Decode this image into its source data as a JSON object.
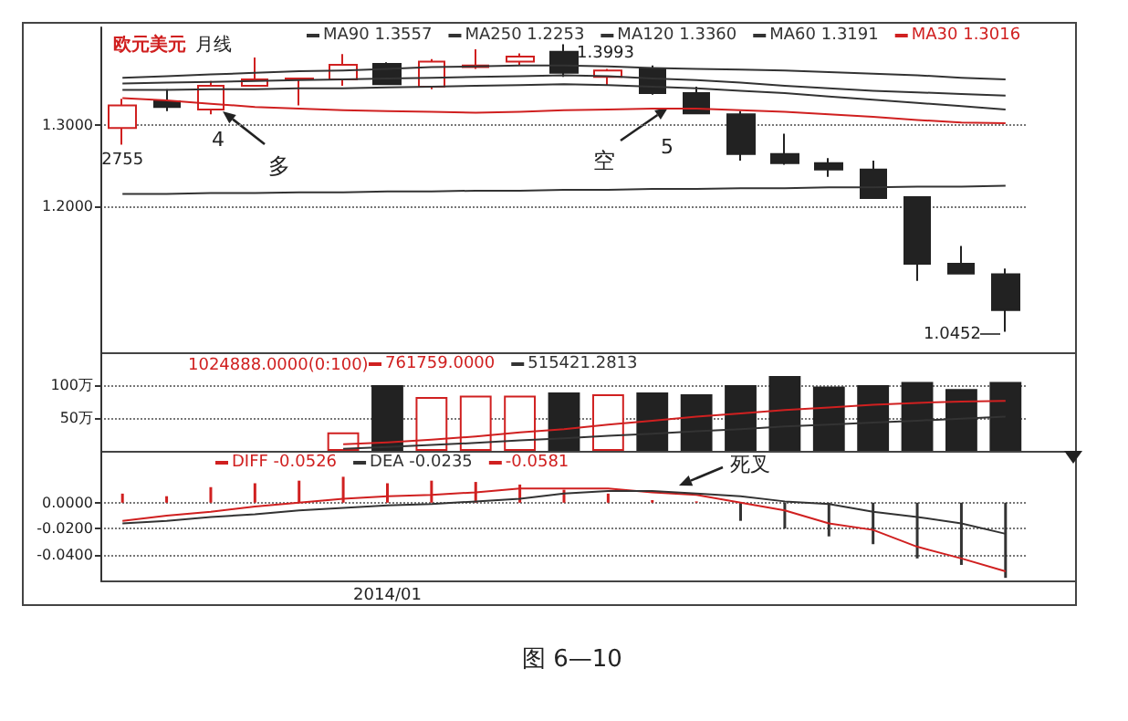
{
  "chart_data": [
    {
      "type": "candlestick",
      "title": "欧元美元",
      "subtitle": "月线",
      "categories": [
        null,
        null,
        null,
        null,
        null,
        null,
        null,
        null,
        null,
        null,
        null,
        null,
        null,
        null,
        null,
        null,
        null,
        null,
        null,
        null,
        null
      ],
      "series": [
        {
          "colors": [
            "#d02020",
            "#222222",
            "#d02020",
            "#d02020",
            "#d02020",
            "#d02020",
            "#222222",
            "#d02020",
            "#d02020",
            "#d02020",
            "#222222",
            "#d02020",
            "#222222",
            "#222222",
            "#222222",
            "#222222",
            "#222222",
            "#222222",
            "#222222",
            "#222222",
            "#222222"
          ],
          "ohlc": [
            [
              1.296,
              1.332,
              1.2755,
              1.324
            ],
            [
              1.329,
              1.344,
              1.317,
              1.322
            ],
            [
              1.319,
              1.354,
              1.313,
              1.348
            ],
            [
              1.348,
              1.383,
              1.347,
              1.356
            ],
            [
              1.356,
              1.357,
              1.324,
              1.357
            ],
            [
              1.356,
              1.387,
              1.348,
              1.374
            ],
            [
              1.375,
              1.377,
              1.349,
              1.35
            ],
            [
              1.347,
              1.381,
              1.344,
              1.378
            ],
            [
              1.371,
              1.393,
              1.369,
              1.373
            ],
            [
              1.378,
              1.388,
              1.374,
              1.384
            ],
            [
              1.39,
              1.3993,
              1.359,
              1.364
            ],
            [
              1.359,
              1.369,
              1.349,
              1.367
            ],
            [
              1.369,
              1.373,
              1.337,
              1.339
            ],
            [
              1.339,
              1.347,
              1.313,
              1.314
            ],
            [
              1.313,
              1.317,
              1.256,
              1.264
            ],
            [
              1.264,
              1.289,
              1.251,
              1.253
            ],
            [
              1.253,
              1.259,
              1.236,
              1.245
            ],
            [
              1.245,
              1.256,
              1.209,
              1.21
            ],
            [
              1.211,
              1.211,
              1.108,
              1.129
            ],
            [
              1.129,
              1.151,
              1.117,
              1.117
            ],
            [
              1.116,
              1.123,
              1.0452,
              1.072
            ]
          ]
        },
        {
          "type": "line",
          "name": "MA90 1.3557",
          "color": "#333333",
          "values": [
            1.358,
            1.36,
            1.362,
            1.364,
            1.366,
            1.367,
            1.369,
            1.371,
            1.372,
            1.373,
            1.373,
            1.372,
            1.37,
            1.369,
            1.368,
            1.367,
            1.365,
            1.363,
            1.361,
            1.358,
            1.356
          ]
        },
        {
          "type": "line",
          "name": "MA250 1.2253",
          "color": "#333333",
          "values": [
            1.215,
            1.215,
            1.216,
            1.216,
            1.217,
            1.217,
            1.218,
            1.218,
            1.219,
            1.219,
            1.22,
            1.22,
            1.221,
            1.221,
            1.222,
            1.222,
            1.223,
            1.223,
            1.224,
            1.224,
            1.225
          ]
        },
        {
          "type": "line",
          "name": "MA120 1.3360",
          "color": "#333333",
          "values": [
            1.351,
            1.352,
            1.353,
            1.354,
            1.355,
            1.356,
            1.357,
            1.358,
            1.359,
            1.36,
            1.361,
            1.36,
            1.357,
            1.355,
            1.352,
            1.348,
            1.345,
            1.342,
            1.34,
            1.338,
            1.336
          ]
        },
        {
          "type": "line",
          "name": "MA60 1.3191",
          "color": "#333333",
          "values": [
            1.343,
            1.343,
            1.344,
            1.344,
            1.345,
            1.345,
            1.346,
            1.347,
            1.348,
            1.349,
            1.35,
            1.349,
            1.347,
            1.345,
            1.342,
            1.339,
            1.335,
            1.331,
            1.327,
            1.323,
            1.319
          ]
        },
        {
          "type": "line",
          "name": "MA30 1.3016",
          "color": "#d02020",
          "values": [
            1.333,
            1.33,
            1.326,
            1.322,
            1.32,
            1.318,
            1.317,
            1.316,
            1.315,
            1.316,
            1.318,
            1.319,
            1.32,
            1.32,
            1.318,
            1.316,
            1.313,
            1.31,
            1.306,
            1.303,
            1.302
          ]
        }
      ],
      "ylim": [
        1.02,
        1.42
      ],
      "yticks": [
        {
          "value": 1.2,
          "label": "1.2000"
        },
        {
          "value": 1.3,
          "label": "1.3000"
        }
      ],
      "grid": "y",
      "legend": "top",
      "tick_labels": "y",
      "marker": "none",
      "line_style": "solid",
      "annotations": [
        "4",
        "多",
        "5",
        "空",
        "1.3993",
        "1.0452",
        {
          "text": "2755",
          "y": 1.2755
        }
      ]
    },
    {
      "type": "bar",
      "categories": [
        null,
        null,
        null,
        null,
        null,
        null,
        null,
        null,
        null,
        null,
        null,
        null,
        null,
        null,
        null,
        null,
        null,
        null,
        null,
        null,
        null
      ],
      "series": [
        {
          "colors": [
            null,
            null,
            null,
            null,
            null,
            "#d02020",
            "#222222",
            "#d02020",
            "#d02020",
            "#d02020",
            "#222222",
            "#d02020",
            "#222222",
            "#222222",
            "#222222",
            "#222222",
            "#222222",
            "#222222",
            "#222222",
            "#222222",
            "#222222"
          ],
          "values": [
            null,
            null,
            null,
            null,
            null,
            28,
            100,
            82,
            84,
            84,
            89,
            86,
            89,
            86,
            100,
            114,
            98,
            100,
            105,
            94,
            105
          ]
        },
        {
          "type": "line",
          "name": "761759.0000",
          "color": "#d02020",
          "values": [
            null,
            null,
            null,
            null,
            null,
            10,
            13,
            17,
            22,
            28,
            33,
            40,
            46,
            52,
            57,
            62,
            66,
            70,
            73,
            75,
            76
          ]
        },
        {
          "type": "line",
          "name": "515421.2813",
          "color": "#333333",
          "values": [
            null,
            null,
            null,
            null,
            null,
            3,
            6,
            9,
            12,
            16,
            19,
            23,
            26,
            30,
            33,
            37,
            40,
            43,
            46,
            49,
            52
          ]
        }
      ],
      "ylim": [
        0,
        150
      ],
      "yticks": [
        {
          "value": 50,
          "label": "50万"
        },
        {
          "value": 100,
          "label": "100万"
        }
      ],
      "grid": "y",
      "legend": "top",
      "tick_labels": "y",
      "marker": "none",
      "line_style": "solid",
      "annotations": [
        "1024888.0000(0:100)"
      ]
    },
    {
      "type": "line",
      "categories": [
        null,
        null,
        null,
        null,
        null,
        null,
        "2014/01",
        null,
        null,
        null,
        null,
        null,
        null,
        null,
        null,
        null,
        null,
        null,
        null,
        null,
        null
      ],
      "series": [
        {
          "name": "DIFF -0.0526",
          "color": "#d02020",
          "values": [
            -0.014,
            -0.01,
            -0.007,
            -0.003,
            0,
            0.003,
            0.005,
            0.006,
            0.008,
            0.011,
            0.011,
            0.011,
            0.008,
            0.006,
            0,
            -0.006,
            -0.016,
            -0.021,
            -0.034,
            -0.043,
            -0.053
          ]
        },
        {
          "name": "DEA -0.0235",
          "color": "#333333",
          "values": [
            -0.016,
            -0.014,
            -0.011,
            -0.009,
            -0.006,
            -0.004,
            -0.002,
            -0.001,
            0.001,
            0.003,
            0.007,
            0.009,
            0.009,
            0.007,
            0.005,
            0.001,
            -0.001,
            -0.007,
            -0.011,
            -0.016,
            -0.024
          ]
        },
        {
          "type": "bar",
          "name": "-0.0581",
          "color": "#d02020",
          "colors": [
            "#d02020",
            "#d02020",
            "#d02020",
            "#d02020",
            "#d02020",
            "#d02020",
            "#d02020",
            "#d02020",
            "#d02020",
            "#d02020",
            "#d02020",
            "#d02020",
            "#d02020",
            "#d02020",
            "#333333",
            "#333333",
            "#333333",
            "#333333",
            "#333333",
            "#333333",
            "#333333"
          ],
          "values": [
            0.007,
            0.005,
            0.012,
            0.015,
            0.017,
            0.02,
            0.015,
            0.017,
            0.016,
            0.014,
            0.01,
            0.007,
            0.002,
            0.001,
            -0.014,
            -0.02,
            -0.026,
            -0.032,
            -0.043,
            -0.048,
            -0.058
          ]
        }
      ],
      "ylim": [
        -0.06,
        0.04
      ],
      "yticks": [
        {
          "value": 0,
          "label": "0.0000"
        },
        {
          "value": -0.02,
          "label": "-0.0200"
        },
        {
          "value": -0.04,
          "label": "-0.0400"
        }
      ],
      "grid": "y",
      "legend": "top",
      "marker": "none",
      "line_style": "solid",
      "annotations": [
        "死叉",
        "图 6—10"
      ]
    }
  ]
}
